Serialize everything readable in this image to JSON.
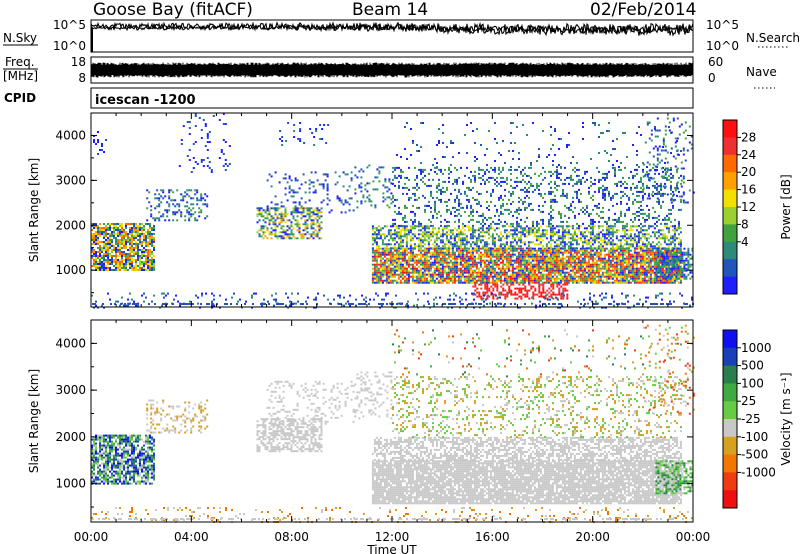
{
  "header": {
    "station": "Goose Bay (fitACF)",
    "beam": "Beam 14",
    "date": "02/Feb/2014"
  },
  "chart_data": [
    {
      "type": "line",
      "panel": "noise",
      "left_label": "N.Sky",
      "right_label": "N.Search",
      "left_ticks": [
        "10^5",
        "10^0"
      ],
      "right_ticks": [
        "10^5",
        "10^0"
      ],
      "x": [
        "00:00",
        "04:00",
        "08:00",
        "12:00",
        "16:00",
        "20:00",
        "00:00"
      ],
      "series": [
        {
          "role": "sky-noise",
          "color": "#000000",
          "level": [
            0.82,
            0.8,
            0.8,
            0.78,
            0.72,
            0.7,
            0.7
          ],
          "spread": 0.25
        },
        {
          "role": "search-noise",
          "color": "#000000",
          "level": [
            0.78,
            0.8,
            0.82,
            0.82,
            0.76,
            0.74,
            0.76
          ],
          "spread": 0.15
        }
      ]
    },
    {
      "type": "line",
      "panel": "frequency",
      "left_label_1": "Freq.",
      "left_label_2": "[MHz]",
      "right_label": "Nave",
      "left_ticks": [
        "18",
        "8"
      ],
      "right_ticks": [
        "60",
        "0"
      ],
      "series": [
        {
          "role": "frequency",
          "color": "#000000",
          "band": [
            0.26,
            0.74
          ]
        }
      ]
    },
    {
      "type": "table",
      "panel": "cpid",
      "label": "CPID",
      "value": "icescan -1200"
    },
    {
      "type": "heatmap",
      "panel": "power",
      "ylabel": "Slant Range [km]",
      "yticks": [
        1000,
        2000,
        3000,
        4000
      ],
      "ylim": [
        180,
        4500
      ],
      "xlim_hours": [
        0,
        24
      ],
      "colorbar": {
        "label": "Power [dB]",
        "ticks": [
          "28",
          "24",
          "20",
          "16",
          "12",
          "8",
          "4"
        ],
        "colors": [
          "#ff1010",
          "#ee3030",
          "#ff6a00",
          "#ffa000",
          "#f2e000",
          "#9ad030",
          "#3fa23f",
          "#2e8a78",
          "#2255bb",
          "#1e1eff"
        ]
      },
      "regions": [
        {
          "t": [
            0.0,
            2.5
          ],
          "r": [
            1000,
            2050
          ],
          "density": 0.75,
          "c": [
            2,
            9
          ]
        },
        {
          "t": [
            0.0,
            0.6
          ],
          "r": [
            3600,
            4100
          ],
          "density": 0.2,
          "c": [
            8,
            9
          ]
        },
        {
          "t": [
            2.2,
            4.6
          ],
          "r": [
            2100,
            2800
          ],
          "density": 0.3,
          "c": [
            6,
            9
          ]
        },
        {
          "t": [
            3.5,
            5.5
          ],
          "r": [
            3200,
            4500
          ],
          "density": 0.06,
          "c": [
            8,
            9
          ]
        },
        {
          "t": [
            6.6,
            9.2
          ],
          "r": [
            1700,
            2400
          ],
          "density": 0.55,
          "c": [
            3,
            9
          ]
        },
        {
          "t": [
            7.0,
            10.5
          ],
          "r": [
            2300,
            3200
          ],
          "density": 0.15,
          "c": [
            7,
            9
          ]
        },
        {
          "t": [
            7.5,
            9.5
          ],
          "r": [
            3800,
            4300
          ],
          "density": 0.1,
          "c": [
            7,
            9
          ]
        },
        {
          "t": [
            10.5,
            12.0
          ],
          "r": [
            2400,
            3400
          ],
          "density": 0.15,
          "c": [
            6,
            9
          ]
        },
        {
          "t": [
            11.2,
            23.5
          ],
          "r": [
            700,
            1500
          ],
          "density": 0.85,
          "c": [
            0,
            9
          ]
        },
        {
          "t": [
            11.2,
            23.5
          ],
          "r": [
            1500,
            2000
          ],
          "density": 0.55,
          "c": [
            4,
            9
          ]
        },
        {
          "t": [
            12.0,
            23.5
          ],
          "r": [
            2000,
            3300
          ],
          "density": 0.22,
          "c": [
            6,
            9
          ]
        },
        {
          "t": [
            12.0,
            23.5
          ],
          "r": [
            3300,
            4300
          ],
          "density": 0.05,
          "c": [
            7,
            9
          ]
        },
        {
          "t": [
            15.2,
            19.0
          ],
          "r": [
            380,
            700
          ],
          "density": 0.5,
          "c": [
            0,
            1
          ]
        },
        {
          "t": [
            22.5,
            24.0
          ],
          "r": [
            800,
            1500
          ],
          "density": 0.6,
          "c": [
            6,
            9
          ]
        },
        {
          "t": [
            22.0,
            24.0
          ],
          "r": [
            2500,
            4400
          ],
          "density": 0.12,
          "c": [
            6,
            9
          ]
        },
        {
          "t": [
            0.0,
            24.0
          ],
          "r": [
            180,
            500
          ],
          "density": 0.12,
          "c": [
            7,
            9
          ]
        }
      ]
    },
    {
      "type": "heatmap",
      "panel": "velocity",
      "ylabel": "Slant Range [km]",
      "yticks": [
        1000,
        2000,
        3000,
        4000
      ],
      "ylim": [
        180,
        4500
      ],
      "xlim_hours": [
        0,
        24
      ],
      "xticks": [
        "00:00",
        "04:00",
        "08:00",
        "12:00",
        "16:00",
        "20:00",
        "00:00"
      ],
      "xlabel": "Time UT",
      "colorbar": {
        "label": "Velocity [m s⁻¹]",
        "ticks": [
          "1000",
          "500",
          "100",
          "25",
          "-25",
          "-100",
          "-500",
          "-1000"
        ],
        "colors": [
          "#1010ee",
          "#1a3fb8",
          "#2a7e4c",
          "#3faa3f",
          "#66cc44",
          "#c8c8c8",
          "#d8a020",
          "#f07800",
          "#f03a10",
          "#ee1010"
        ]
      },
      "regions": [
        {
          "t": [
            0.0,
            2.5
          ],
          "r": [
            1000,
            2050
          ],
          "density": 0.75,
          "c": [
            0,
            5
          ]
        },
        {
          "t": [
            2.2,
            4.6
          ],
          "r": [
            2100,
            2800
          ],
          "density": 0.25,
          "c": [
            5,
            6
          ]
        },
        {
          "t": [
            6.6,
            9.2
          ],
          "r": [
            1700,
            2400
          ],
          "density": 0.55,
          "c": [
            5,
            5
          ]
        },
        {
          "t": [
            7.0,
            10.5
          ],
          "r": [
            2300,
            3200
          ],
          "density": 0.15,
          "c": [
            5,
            5
          ]
        },
        {
          "t": [
            10.5,
            12.0
          ],
          "r": [
            2400,
            3400
          ],
          "density": 0.2,
          "c": [
            5,
            5
          ]
        },
        {
          "t": [
            11.2,
            23.5
          ],
          "r": [
            600,
            1500
          ],
          "density": 0.85,
          "c": [
            5,
            5
          ]
        },
        {
          "t": [
            11.2,
            23.5
          ],
          "r": [
            1500,
            2000
          ],
          "density": 0.55,
          "c": [
            5,
            5
          ]
        },
        {
          "t": [
            12.0,
            23.5
          ],
          "r": [
            2000,
            3300
          ],
          "density": 0.2,
          "c": [
            4,
            6
          ]
        },
        {
          "t": [
            12.0,
            23.5
          ],
          "r": [
            3300,
            4300
          ],
          "density": 0.04,
          "c": [
            2,
            8
          ]
        },
        {
          "t": [
            22.5,
            24.0
          ],
          "r": [
            800,
            1500
          ],
          "density": 0.6,
          "c": [
            2,
            5
          ]
        },
        {
          "t": [
            22.0,
            24.0
          ],
          "r": [
            2500,
            4400
          ],
          "density": 0.1,
          "c": [
            4,
            8
          ]
        },
        {
          "t": [
            0.0,
            24.0
          ],
          "r": [
            180,
            500
          ],
          "density": 0.1,
          "c": [
            5,
            7
          ]
        }
      ]
    }
  ]
}
